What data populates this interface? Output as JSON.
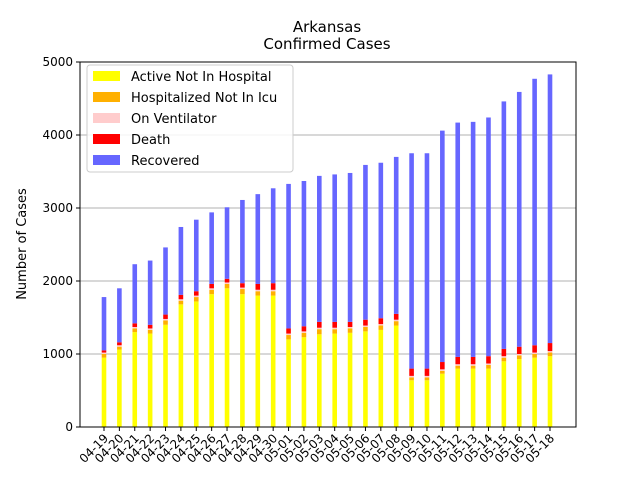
{
  "chart_data": {
    "type": "bar",
    "stacked": true,
    "title": "Arkansas",
    "subtitle": "Confirmed Cases",
    "xlabel": "",
    "ylabel": "Number of Cases",
    "ylim": [
      0,
      5000
    ],
    "yticks": [
      0,
      1000,
      2000,
      3000,
      4000,
      5000
    ],
    "grid": "horizontal",
    "legend_position": "top-left",
    "categories": [
      "04-19",
      "04-20",
      "04-21",
      "04-22",
      "04-23",
      "04-24",
      "04-25",
      "04-26",
      "04-27",
      "04-28",
      "04-29",
      "04-30",
      "05-01",
      "05-02",
      "05-03",
      "05-04",
      "05-05",
      "05-06",
      "05-07",
      "05-08",
      "05-09",
      "05-10",
      "05-11",
      "05-12",
      "05-13",
      "05-14",
      "05-15",
      "05-16",
      "05-17",
      "05-18"
    ],
    "series": [
      {
        "name": "Active Not In Hospital",
        "color": "#ffff00",
        "values": [
          950,
          1060,
          1300,
          1280,
          1400,
          1680,
          1720,
          1820,
          1900,
          1820,
          1800,
          1800,
          1200,
          1230,
          1270,
          1280,
          1290,
          1310,
          1330,
          1390,
          640,
          640,
          730,
          800,
          800,
          800,
          900,
          930,
          950,
          970
        ]
      },
      {
        "name": "Hospitalized Not In Icu",
        "color": "#ffb000",
        "values": [
          50,
          40,
          50,
          50,
          60,
          50,
          60,
          60,
          60,
          70,
          60,
          60,
          60,
          60,
          70,
          60,
          60,
          60,
          60,
          60,
          40,
          40,
          40,
          40,
          40,
          50,
          50,
          50,
          50,
          50
        ]
      },
      {
        "name": "On Ventilator",
        "color": "#ffcccc",
        "values": [
          20,
          20,
          20,
          20,
          20,
          20,
          20,
          20,
          20,
          20,
          20,
          20,
          20,
          20,
          20,
          20,
          20,
          20,
          20,
          20,
          20,
          20,
          20,
          20,
          20,
          20,
          20,
          20,
          20,
          20
        ]
      },
      {
        "name": "Death",
        "color": "#ff0000",
        "values": [
          30,
          40,
          50,
          50,
          60,
          60,
          60,
          60,
          50,
          60,
          80,
          90,
          70,
          70,
          80,
          80,
          70,
          80,
          80,
          80,
          100,
          100,
          100,
          100,
          100,
          100,
          100,
          100,
          100,
          110
        ]
      },
      {
        "name": "Recovered",
        "color": "#6666ff",
        "values": [
          730,
          740,
          810,
          880,
          920,
          930,
          980,
          980,
          980,
          1140,
          1230,
          1300,
          1980,
          1990,
          2000,
          2020,
          2040,
          2120,
          2130,
          2150,
          2950,
          2950,
          3170,
          3210,
          3220,
          3270,
          3390,
          3490,
          3650,
          3680
        ]
      }
    ]
  }
}
